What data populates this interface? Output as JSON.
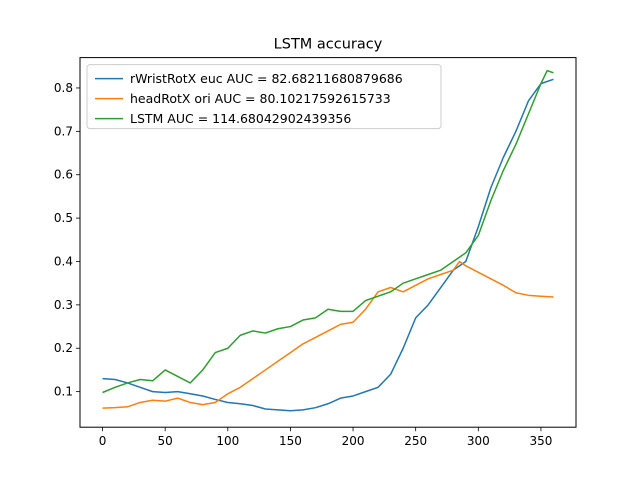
{
  "chart_data": {
    "type": "line",
    "title": "LSTM accuracy",
    "xlabel": "",
    "ylabel": "",
    "xlim": [
      -18,
      378
    ],
    "ylim": [
      0.018,
      0.87
    ],
    "xticks": [
      0,
      50,
      100,
      150,
      200,
      250,
      300,
      350
    ],
    "yticks": [
      0.1,
      0.2,
      0.3,
      0.4,
      0.5,
      0.6,
      0.7,
      0.8
    ],
    "grid": false,
    "legend_position": "top-left",
    "series": [
      {
        "name": "rWristRotX euc AUC = 82.68211680879686",
        "color": "#1f77b4",
        "x": [
          0,
          10,
          20,
          30,
          40,
          50,
          60,
          70,
          80,
          90,
          100,
          110,
          120,
          130,
          140,
          150,
          160,
          170,
          180,
          190,
          200,
          210,
          220,
          230,
          240,
          250,
          260,
          270,
          280,
          290,
          300,
          310,
          320,
          330,
          340,
          350,
          360
        ],
        "y": [
          0.13,
          0.128,
          0.12,
          0.11,
          0.1,
          0.098,
          0.1,
          0.095,
          0.09,
          0.082,
          0.075,
          0.072,
          0.068,
          0.06,
          0.058,
          0.056,
          0.058,
          0.063,
          0.072,
          0.085,
          0.09,
          0.1,
          0.11,
          0.14,
          0.2,
          0.27,
          0.3,
          0.34,
          0.38,
          0.4,
          0.48,
          0.57,
          0.64,
          0.7,
          0.77,
          0.81,
          0.82
        ]
      },
      {
        "name": "headRotX ori AUC = 80.10217592615733",
        "color": "#ff7f0e",
        "x": [
          0,
          10,
          20,
          30,
          40,
          50,
          60,
          70,
          80,
          90,
          100,
          110,
          120,
          130,
          140,
          150,
          160,
          170,
          180,
          190,
          200,
          210,
          220,
          230,
          240,
          250,
          260,
          270,
          280,
          285,
          290,
          300,
          310,
          320,
          330,
          340,
          350,
          360
        ],
        "y": [
          0.062,
          0.063,
          0.065,
          0.075,
          0.08,
          0.078,
          0.085,
          0.075,
          0.07,
          0.075,
          0.095,
          0.11,
          0.13,
          0.15,
          0.17,
          0.19,
          0.21,
          0.225,
          0.24,
          0.255,
          0.26,
          0.29,
          0.33,
          0.34,
          0.33,
          0.345,
          0.36,
          0.37,
          0.38,
          0.4,
          0.39,
          0.375,
          0.36,
          0.345,
          0.328,
          0.322,
          0.32,
          0.318
        ]
      },
      {
        "name": "LSTM AUC = 114.68042902439356",
        "color": "#2ca02c",
        "x": [
          0,
          10,
          20,
          30,
          40,
          50,
          60,
          70,
          80,
          90,
          100,
          110,
          120,
          130,
          140,
          150,
          160,
          170,
          180,
          190,
          200,
          210,
          220,
          230,
          240,
          250,
          260,
          270,
          280,
          290,
          300,
          310,
          320,
          330,
          340,
          350,
          355,
          360
        ],
        "y": [
          0.098,
          0.11,
          0.12,
          0.128,
          0.125,
          0.15,
          0.135,
          0.12,
          0.15,
          0.19,
          0.2,
          0.23,
          0.24,
          0.235,
          0.245,
          0.25,
          0.265,
          0.27,
          0.29,
          0.285,
          0.285,
          0.31,
          0.32,
          0.33,
          0.35,
          0.36,
          0.37,
          0.38,
          0.4,
          0.42,
          0.46,
          0.54,
          0.61,
          0.67,
          0.74,
          0.81,
          0.84,
          0.835
        ]
      }
    ]
  }
}
